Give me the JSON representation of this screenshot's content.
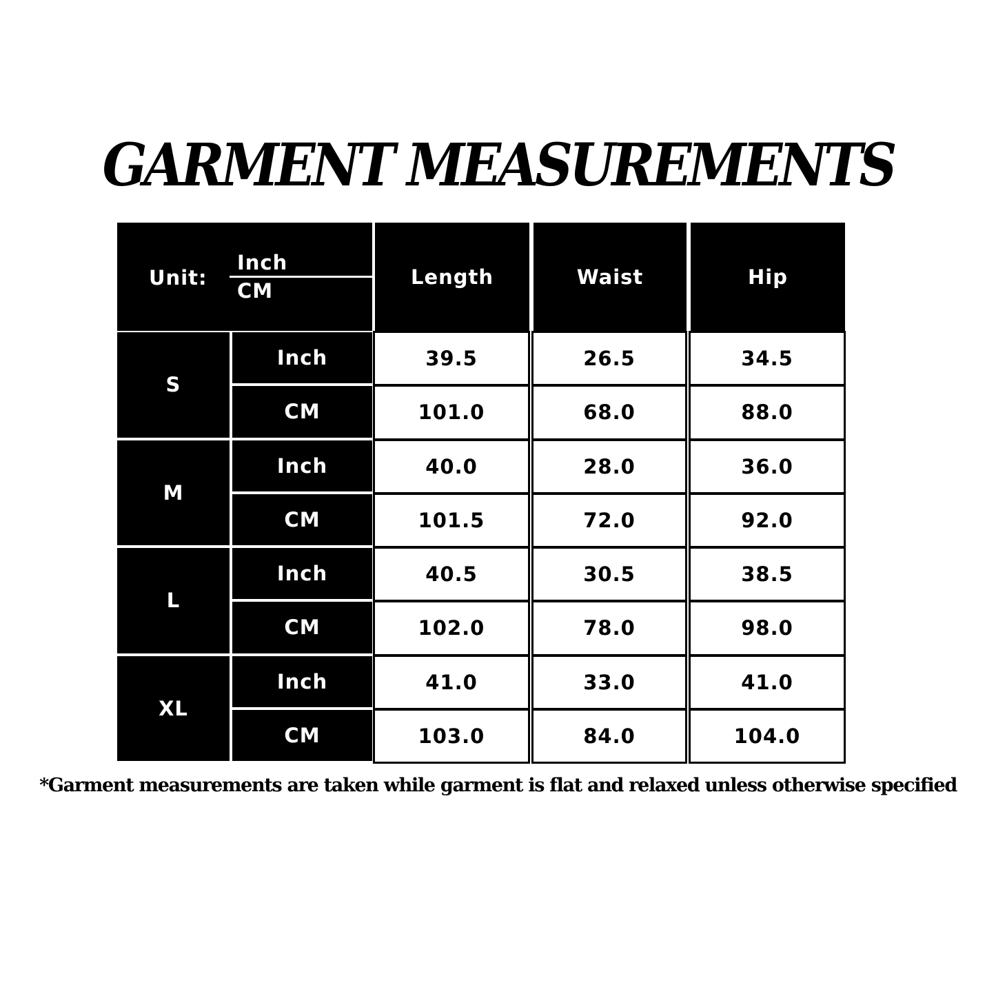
{
  "title": "GARMENT MEASUREMENTS",
  "header": {
    "unit_label": "Unit:",
    "unit_top": "Inch",
    "unit_bottom": "CM",
    "columns": [
      "Length",
      "Waist",
      "Hip"
    ]
  },
  "sizes": [
    {
      "size": "S",
      "rows": [
        {
          "unit": "Inch",
          "values": [
            "39.5",
            "26.5",
            "34.5"
          ]
        },
        {
          "unit": "CM",
          "values": [
            "101.0",
            "68.0",
            "88.0"
          ]
        }
      ]
    },
    {
      "size": "M",
      "rows": [
        {
          "unit": "Inch",
          "values": [
            "40.0",
            "28.0",
            "36.0"
          ]
        },
        {
          "unit": "CM",
          "values": [
            "101.5",
            "72.0",
            "92.0"
          ]
        }
      ]
    },
    {
      "size": "L",
      "rows": [
        {
          "unit": "Inch",
          "values": [
            "40.5",
            "30.5",
            "38.5"
          ]
        },
        {
          "unit": "CM",
          "values": [
            "102.0",
            "78.0",
            "98.0"
          ]
        }
      ]
    },
    {
      "size": "XL",
      "rows": [
        {
          "unit": "Inch",
          "values": [
            "41.0",
            "33.0",
            "41.0"
          ]
        },
        {
          "unit": "CM",
          "values": [
            "103.0",
            "84.0",
            "104.0"
          ]
        }
      ]
    }
  ],
  "note": "*Garment measurements are taken while garment is flat and relaxed unless otherwise specified"
}
